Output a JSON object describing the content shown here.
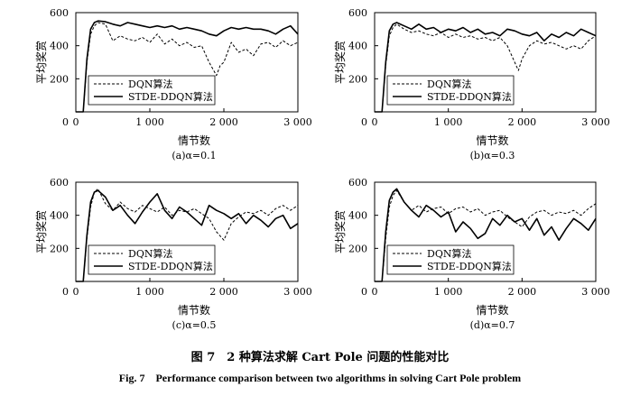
{
  "figure": {
    "caption_cn": "图 7　2 种算法求解 Cart Pole 问题的性能对比",
    "caption_en": "Fig. 7　Performance comparison between two algorithms in solving Cart Pole problem"
  },
  "chart_data": [
    {
      "type": "line",
      "subtitle": "(a)α=0.1",
      "xlabel": "情节数",
      "ylabel": "平均奖赏",
      "xlim": [
        0,
        3000
      ],
      "ylim": [
        0,
        600
      ],
      "xticks": [
        0,
        1000,
        2000,
        3000
      ],
      "xtick_labels": [
        "0",
        "1 000",
        "2 000",
        "3 000"
      ],
      "yticks": [
        200,
        400,
        600
      ],
      "ytick_labels": [
        "200",
        "400",
        "600"
      ],
      "legend_position": "bottom-left",
      "series": [
        {
          "name": "DQN算法",
          "style": "dashed",
          "x": [
            0,
            100,
            150,
            200,
            250,
            300,
            400,
            500,
            600,
            700,
            800,
            900,
            1000,
            1100,
            1200,
            1300,
            1400,
            1500,
            1600,
            1700,
            1800,
            1850,
            1900,
            1950,
            2000,
            2100,
            2200,
            2300,
            2400,
            2500,
            2600,
            2700,
            2800,
            2900,
            3000
          ],
          "y": [
            0,
            0,
            300,
            470,
            520,
            540,
            530,
            430,
            460,
            440,
            430,
            450,
            420,
            470,
            410,
            440,
            400,
            420,
            390,
            400,
            300,
            260,
            220,
            280,
            300,
            420,
            360,
            380,
            340,
            410,
            420,
            390,
            430,
            400,
            420
          ]
        },
        {
          "name": "STDE-DDQN算法",
          "style": "solid",
          "x": [
            0,
            100,
            150,
            200,
            250,
            300,
            400,
            500,
            600,
            700,
            800,
            900,
            1000,
            1100,
            1200,
            1300,
            1400,
            1500,
            1600,
            1700,
            1800,
            1900,
            2000,
            2100,
            2200,
            2300,
            2400,
            2500,
            2600,
            2700,
            2800,
            2900,
            3000
          ],
          "y": [
            0,
            0,
            320,
            500,
            540,
            550,
            545,
            530,
            520,
            540,
            530,
            520,
            510,
            520,
            510,
            520,
            500,
            510,
            500,
            490,
            470,
            460,
            490,
            510,
            500,
            510,
            500,
            500,
            490,
            470,
            500,
            520,
            470
          ]
        }
      ]
    },
    {
      "type": "line",
      "subtitle": "(b)α=0.3",
      "xlabel": "情节数",
      "ylabel": "平均奖赏",
      "xlim": [
        0,
        3000
      ],
      "ylim": [
        0,
        600
      ],
      "xticks": [
        0,
        1000,
        2000,
        3000
      ],
      "xtick_labels": [
        "0",
        "1 000",
        "2 000",
        "3 000"
      ],
      "yticks": [
        200,
        400,
        600
      ],
      "ytick_labels": [
        "200",
        "400",
        "600"
      ],
      "legend_position": "bottom-left",
      "series": [
        {
          "name": "DQN算法",
          "style": "dashed",
          "x": [
            0,
            100,
            150,
            200,
            250,
            300,
            400,
            500,
            600,
            700,
            800,
            900,
            1000,
            1100,
            1200,
            1300,
            1400,
            1500,
            1600,
            1700,
            1800,
            1900,
            1950,
            2000,
            2100,
            2200,
            2300,
            2400,
            2500,
            2600,
            2700,
            2800,
            2900,
            3000
          ],
          "y": [
            0,
            0,
            280,
            460,
            510,
            530,
            500,
            480,
            490,
            470,
            460,
            480,
            450,
            470,
            450,
            460,
            440,
            450,
            430,
            450,
            400,
            300,
            250,
            320,
            400,
            430,
            410,
            420,
            400,
            380,
            400,
            380,
            430,
            460
          ]
        },
        {
          "name": "STDE-DDQN算法",
          "style": "solid",
          "x": [
            0,
            100,
            150,
            200,
            250,
            300,
            400,
            500,
            600,
            700,
            800,
            900,
            1000,
            1100,
            1200,
            1300,
            1400,
            1500,
            1600,
            1700,
            1800,
            1900,
            2000,
            2100,
            2200,
            2300,
            2400,
            2500,
            2600,
            2700,
            2800,
            2900,
            3000
          ],
          "y": [
            0,
            0,
            300,
            490,
            530,
            540,
            520,
            500,
            530,
            500,
            510,
            480,
            500,
            490,
            510,
            480,
            500,
            470,
            480,
            460,
            500,
            490,
            470,
            460,
            480,
            430,
            470,
            450,
            480,
            460,
            500,
            480,
            460
          ]
        }
      ]
    },
    {
      "type": "line",
      "subtitle": "(c)α=0.5",
      "xlabel": "情节数",
      "ylabel": "平均奖赏",
      "xlim": [
        0,
        3000
      ],
      "ylim": [
        0,
        600
      ],
      "xticks": [
        0,
        1000,
        2000,
        3000
      ],
      "xtick_labels": [
        "0",
        "1 000",
        "2 000",
        "3 000"
      ],
      "yticks": [
        200,
        400,
        600
      ],
      "ytick_labels": [
        "200",
        "400",
        "600"
      ],
      "legend_position": "bottom-left",
      "series": [
        {
          "name": "DQN算法",
          "style": "dashed",
          "x": [
            0,
            100,
            150,
            200,
            250,
            300,
            400,
            500,
            600,
            700,
            800,
            900,
            1000,
            1100,
            1200,
            1300,
            1400,
            1500,
            1600,
            1700,
            1800,
            1900,
            2000,
            2100,
            2200,
            2300,
            2400,
            2500,
            2600,
            2700,
            2800,
            2900,
            3000
          ],
          "y": [
            0,
            0,
            260,
            450,
            540,
            560,
            470,
            430,
            480,
            440,
            420,
            460,
            440,
            420,
            450,
            400,
            430,
            420,
            440,
            410,
            380,
            300,
            250,
            350,
            390,
            420,
            410,
            430,
            400,
            440,
            460,
            430,
            460
          ]
        },
        {
          "name": "STDE-DDQN算法",
          "style": "solid",
          "x": [
            0,
            100,
            150,
            200,
            250,
            300,
            400,
            500,
            600,
            700,
            800,
            900,
            1000,
            1100,
            1200,
            1300,
            1400,
            1500,
            1600,
            1700,
            1800,
            1900,
            2000,
            2100,
            2200,
            2300,
            2400,
            2500,
            2600,
            2700,
            2800,
            2900,
            3000
          ],
          "y": [
            0,
            0,
            280,
            480,
            540,
            550,
            510,
            430,
            460,
            400,
            350,
            420,
            480,
            530,
            430,
            380,
            450,
            420,
            380,
            340,
            460,
            430,
            410,
            380,
            410,
            350,
            400,
            370,
            330,
            380,
            400,
            320,
            350
          ]
        }
      ]
    },
    {
      "type": "line",
      "subtitle": "(d)α=0.7",
      "xlabel": "情节数",
      "ylabel": "平均奖赏",
      "xlim": [
        0,
        3000
      ],
      "ylim": [
        0,
        600
      ],
      "xticks": [
        0,
        1000,
        2000,
        3000
      ],
      "xtick_labels": [
        "0",
        "1 000",
        "2 000",
        "3 000"
      ],
      "yticks": [
        200,
        400,
        600
      ],
      "ytick_labels": [
        "200",
        "400",
        "600"
      ],
      "legend_position": "bottom-left",
      "series": [
        {
          "name": "DQN算法",
          "style": "dashed",
          "x": [
            0,
            100,
            150,
            200,
            250,
            300,
            400,
            500,
            600,
            700,
            800,
            900,
            1000,
            1100,
            1200,
            1300,
            1400,
            1500,
            1600,
            1700,
            1800,
            1900,
            2000,
            2100,
            2200,
            2300,
            2400,
            2500,
            2600,
            2700,
            2800,
            2900,
            3000
          ],
          "y": [
            0,
            0,
            260,
            450,
            520,
            550,
            480,
            430,
            460,
            420,
            440,
            450,
            410,
            440,
            450,
            420,
            440,
            400,
            420,
            430,
            390,
            360,
            330,
            390,
            420,
            430,
            400,
            420,
            410,
            430,
            400,
            440,
            470
          ]
        },
        {
          "name": "STDE-DDQN算法",
          "style": "solid",
          "x": [
            0,
            100,
            150,
            200,
            250,
            300,
            400,
            500,
            600,
            700,
            800,
            900,
            1000,
            1100,
            1200,
            1300,
            1400,
            1500,
            1600,
            1700,
            1800,
            1900,
            2000,
            2100,
            2200,
            2300,
            2400,
            2500,
            2600,
            2700,
            2800,
            2900,
            3000
          ],
          "y": [
            0,
            0,
            300,
            490,
            540,
            560,
            480,
            430,
            390,
            460,
            430,
            390,
            420,
            300,
            360,
            320,
            260,
            290,
            380,
            340,
            400,
            360,
            380,
            310,
            380,
            280,
            330,
            250,
            320,
            380,
            350,
            310,
            380
          ]
        }
      ]
    }
  ]
}
